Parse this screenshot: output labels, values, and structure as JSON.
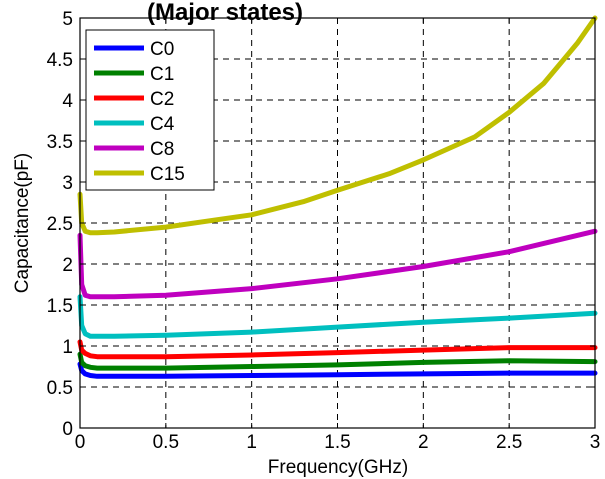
{
  "chart_data": {
    "type": "line",
    "title": "(Major states)",
    "xlabel": "Frequency(GHz)",
    "ylabel": "Capacitance(pF)",
    "xlim": [
      0,
      3
    ],
    "ylim": [
      0,
      5
    ],
    "xticks": [
      "0",
      "0.5",
      "1",
      "1.5",
      "2",
      "2.5",
      "3"
    ],
    "yticks": [
      "0",
      "0.5",
      "1",
      "1.5",
      "2",
      "2.5",
      "3",
      "3.5",
      "4",
      "4.5",
      "5"
    ],
    "grid": true,
    "legend_position": "top-left",
    "series": [
      {
        "name": "C0",
        "color": "#0000ff",
        "x": [
          0,
          0.01,
          0.03,
          0.06,
          0.1,
          0.2,
          0.5,
          1,
          1.5,
          2,
          2.5,
          3
        ],
        "y": [
          0.78,
          0.7,
          0.66,
          0.64,
          0.63,
          0.63,
          0.63,
          0.64,
          0.65,
          0.66,
          0.67,
          0.67
        ]
      },
      {
        "name": "C1",
        "color": "#008000",
        "x": [
          0,
          0.01,
          0.03,
          0.06,
          0.1,
          0.2,
          0.5,
          1,
          1.5,
          2,
          2.5,
          3
        ],
        "y": [
          0.9,
          0.8,
          0.76,
          0.74,
          0.73,
          0.73,
          0.73,
          0.75,
          0.77,
          0.8,
          0.82,
          0.81
        ]
      },
      {
        "name": "C2",
        "color": "#ff0000",
        "x": [
          0,
          0.01,
          0.03,
          0.06,
          0.1,
          0.2,
          0.5,
          1,
          1.5,
          2,
          2.5,
          3
        ],
        "y": [
          1.05,
          0.95,
          0.91,
          0.88,
          0.87,
          0.87,
          0.87,
          0.89,
          0.92,
          0.95,
          0.98,
          0.98
        ]
      },
      {
        "name": "C4",
        "color": "#00bfbf",
        "x": [
          0,
          0.01,
          0.03,
          0.06,
          0.1,
          0.2,
          0.5,
          1,
          1.5,
          2,
          2.5,
          3
        ],
        "y": [
          1.6,
          1.25,
          1.15,
          1.12,
          1.12,
          1.12,
          1.13,
          1.17,
          1.23,
          1.29,
          1.34,
          1.4
        ]
      },
      {
        "name": "C8",
        "color": "#bf00bf",
        "x": [
          0,
          0.01,
          0.03,
          0.06,
          0.1,
          0.2,
          0.5,
          1,
          1.5,
          2,
          2.5,
          3
        ],
        "y": [
          2.35,
          1.75,
          1.62,
          1.6,
          1.6,
          1.6,
          1.62,
          1.7,
          1.82,
          1.97,
          2.15,
          2.4
        ]
      },
      {
        "name": "C15",
        "color": "#bfbf00",
        "x": [
          0,
          0.01,
          0.03,
          0.06,
          0.1,
          0.2,
          0.5,
          0.8,
          1,
          1.3,
          1.5,
          1.8,
          2,
          2.3,
          2.5,
          2.7,
          2.8,
          2.9,
          3
        ],
        "y": [
          2.85,
          2.5,
          2.4,
          2.38,
          2.38,
          2.39,
          2.45,
          2.54,
          2.6,
          2.76,
          2.9,
          3.1,
          3.27,
          3.55,
          3.85,
          4.2,
          4.45,
          4.7,
          5.0
        ]
      }
    ]
  }
}
